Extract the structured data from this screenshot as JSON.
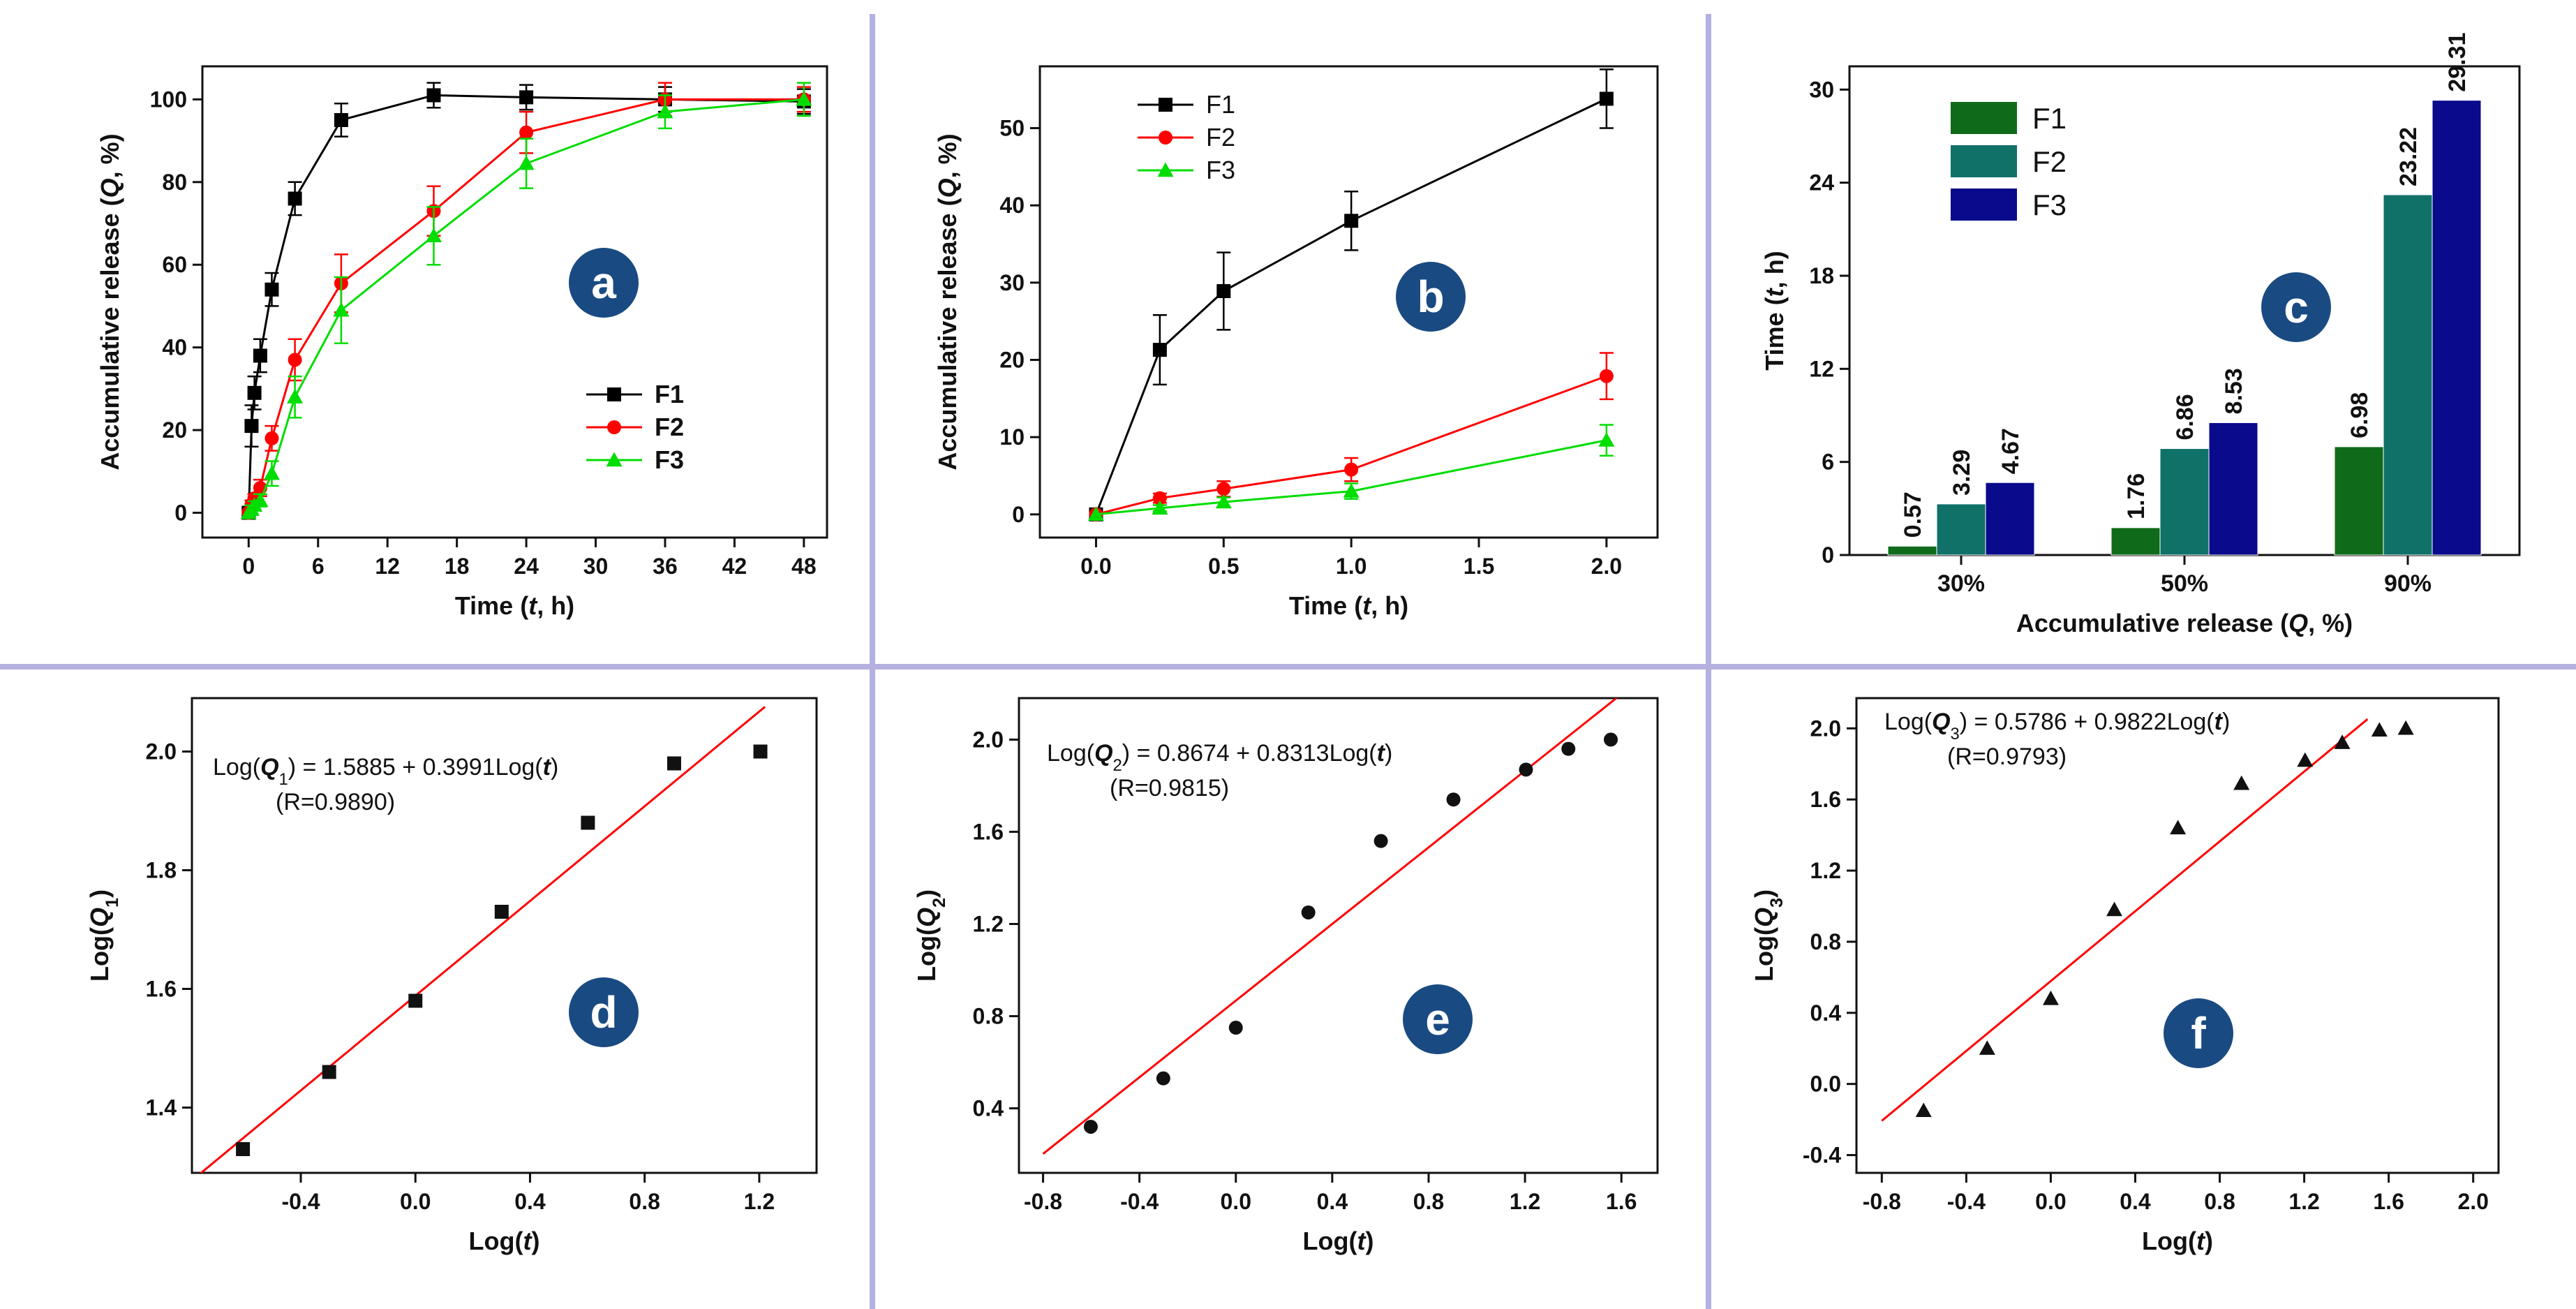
{
  "colors": {
    "divider": "#b4b0e0",
    "badge": "#1a4a82",
    "badge_text": "#ffffff",
    "F1": "#000000",
    "F2": "#ff0000",
    "F3": "#00dd00",
    "bar_F1": "#0f6b1a",
    "bar_F2": "#107169",
    "bar_F3": "#0a0a8c",
    "fit_line": "#ff0000"
  },
  "chart_data": [
    {
      "id": "a",
      "type": "line",
      "badge": "a",
      "xlabel_parts": [
        "Time (",
        "t",
        ", h)"
      ],
      "ylabel_parts": [
        "Accumulative release (",
        "Q",
        ", %)"
      ],
      "xlim": [
        -4,
        50
      ],
      "ylim": [
        -6,
        108
      ],
      "xticks": [
        0,
        6,
        12,
        18,
        24,
        30,
        36,
        42,
        48
      ],
      "xtick_labels": [
        "0",
        "6",
        "12",
        "18",
        "24",
        "30",
        "36",
        "42",
        "48"
      ],
      "yticks": [
        0,
        20,
        40,
        60,
        80,
        100
      ],
      "ytick_labels": [
        "0",
        "20",
        "40",
        "60",
        "80",
        "100"
      ],
      "legend_position": "center-right",
      "series": [
        {
          "name": "F1",
          "marker": "square",
          "x": [
            0,
            0.25,
            0.5,
            1,
            2,
            4,
            8,
            16,
            24,
            36,
            48
          ],
          "y": [
            0,
            21,
            29,
            38,
            54,
            76,
            95,
            101,
            100.5,
            100,
            99.5
          ],
          "err": [
            0,
            5,
            4,
            4,
            4,
            4,
            4,
            3,
            3,
            3,
            3
          ]
        },
        {
          "name": "F2",
          "marker": "circle",
          "x": [
            0,
            0.25,
            0.5,
            1,
            2,
            4,
            8,
            16,
            24,
            36,
            48
          ],
          "y": [
            0,
            2,
            3.5,
            6,
            18,
            37,
            55.5,
            73,
            92,
            100,
            100
          ],
          "err": [
            0,
            1,
            1,
            2,
            3,
            5,
            7,
            6,
            5,
            4,
            3
          ]
        },
        {
          "name": "F3",
          "marker": "triangle",
          "x": [
            0,
            0.25,
            0.5,
            1,
            2,
            4,
            8,
            16,
            24,
            36,
            48
          ],
          "y": [
            0,
            0.8,
            1.8,
            3,
            9.5,
            28,
            49,
            67,
            84.5,
            97,
            100
          ],
          "err": [
            0,
            1,
            1,
            1.5,
            3,
            5,
            8,
            7,
            6,
            4,
            4
          ]
        }
      ]
    },
    {
      "id": "b",
      "type": "line",
      "badge": "b",
      "xlabel_parts": [
        "Time (",
        "t",
        ", h)"
      ],
      "ylabel_parts": [
        "Accumulative release (",
        "Q",
        ", %)"
      ],
      "xlim": [
        -0.22,
        2.2
      ],
      "ylim": [
        -3,
        58
      ],
      "xticks": [
        0,
        0.5,
        1,
        1.5,
        2
      ],
      "xtick_labels": [
        "0.0",
        "0.5",
        "1.0",
        "1.5",
        "2.0"
      ],
      "yticks": [
        0,
        10,
        20,
        30,
        40,
        50
      ],
      "ytick_labels": [
        "0",
        "10",
        "20",
        "30",
        "40",
        "50"
      ],
      "legend_position": "top-left",
      "series": [
        {
          "name": "F1",
          "marker": "square",
          "x": [
            0,
            0.25,
            0.5,
            1,
            2
          ],
          "y": [
            0,
            21.3,
            28.9,
            38,
            53.8
          ],
          "err": [
            0,
            4.5,
            5,
            3.8,
            3.8
          ]
        },
        {
          "name": "F2",
          "marker": "circle",
          "x": [
            0,
            0.25,
            0.5,
            1,
            2
          ],
          "y": [
            0,
            2.1,
            3.3,
            5.8,
            17.9
          ],
          "err": [
            0,
            0.6,
            1,
            1.5,
            3
          ]
        },
        {
          "name": "F3",
          "marker": "triangle",
          "x": [
            0,
            0.25,
            0.5,
            1,
            2
          ],
          "y": [
            0,
            0.8,
            1.6,
            3,
            9.6
          ],
          "err": [
            0,
            0.4,
            0.6,
            1,
            2
          ]
        }
      ]
    },
    {
      "id": "c",
      "type": "bar",
      "badge": "c",
      "categories": [
        "30%",
        "50%",
        "90%"
      ],
      "xlabel_parts": [
        "Accumulative release (",
        "Q",
        ", %)"
      ],
      "ylabel_parts": [
        "Time (",
        "t",
        ", h)"
      ],
      "ylim": [
        0,
        31.5
      ],
      "yticks": [
        0,
        6,
        12,
        18,
        24,
        30
      ],
      "ytick_labels": [
        "0",
        "6",
        "12",
        "18",
        "24",
        "30"
      ],
      "legend_position": "top-left",
      "series": [
        {
          "name": "F1",
          "values": [
            0.57,
            1.76,
            6.98
          ],
          "labels": [
            "0.57",
            "1.76",
            "6.98"
          ]
        },
        {
          "name": "F2",
          "values": [
            3.29,
            6.86,
            23.22
          ],
          "labels": [
            "3.29",
            "6.86",
            "23.22"
          ]
        },
        {
          "name": "F3",
          "values": [
            4.67,
            8.53,
            29.31
          ],
          "labels": [
            "4.67",
            "8.53",
            "29.31"
          ]
        }
      ]
    },
    {
      "id": "d",
      "type": "scatter",
      "badge": "d",
      "marker": "square",
      "xlabel_parts": [
        "Log(",
        "t",
        ")"
      ],
      "ylabel_parts": [
        "Log(",
        "Q",
        "1",
        ")"
      ],
      "xlim": [
        -0.78,
        1.4
      ],
      "ylim": [
        1.29,
        2.09
      ],
      "xticks": [
        -0.4,
        0,
        0.4,
        0.8,
        1.2
      ],
      "xtick_labels": [
        "-0.4",
        "0.0",
        "0.4",
        "0.8",
        "1.2"
      ],
      "yticks": [
        1.4,
        1.6,
        1.8,
        2.0
      ],
      "ytick_labels": [
        "1.4",
        "1.6",
        "1.8",
        "2.0"
      ],
      "equation_parts": [
        "Log(",
        "Q",
        "1",
        ") = 1.5885 + 0.3991Log(",
        "t",
        ")"
      ],
      "r_label": "(R=0.9890)",
      "fit": {
        "intercept": 1.5885,
        "slope": 0.3991,
        "x_range": [
          -0.78,
          1.22
        ]
      },
      "x": [
        -0.602,
        -0.301,
        0,
        0.301,
        0.602,
        0.903,
        1.204
      ],
      "y": [
        1.33,
        1.46,
        1.58,
        1.73,
        1.88,
        1.98,
        2.0
      ]
    },
    {
      "id": "e",
      "type": "scatter",
      "badge": "e",
      "marker": "circle",
      "xlabel_parts": [
        "Log(",
        "t",
        ")"
      ],
      "ylabel_parts": [
        "Log(",
        "Q",
        "2",
        ")"
      ],
      "xlim": [
        -0.9,
        1.75
      ],
      "ylim": [
        0.12,
        2.18
      ],
      "xticks": [
        -0.8,
        -0.4,
        0,
        0.4,
        0.8,
        1.2,
        1.6
      ],
      "xtick_labels": [
        "-0.8",
        "-0.4",
        "0.0",
        "0.4",
        "0.8",
        "1.2",
        "1.6"
      ],
      "yticks": [
        0.4,
        0.8,
        1.2,
        1.6,
        2.0
      ],
      "ytick_labels": [
        "0.4",
        "0.8",
        "1.2",
        "1.6",
        "2.0"
      ],
      "equation_parts": [
        "Log(",
        "Q",
        "2",
        ") = 0.8674 + 0.8313Log(",
        "t",
        ")"
      ],
      "r_label": "(R=0.9815)",
      "fit": {
        "intercept": 0.8674,
        "slope": 0.8313,
        "x_range": [
          -0.8,
          1.6
        ]
      },
      "x": [
        -0.602,
        -0.301,
        0,
        0.301,
        0.602,
        0.903,
        1.204,
        1.38,
        1.556
      ],
      "y": [
        0.32,
        0.53,
        0.75,
        1.25,
        1.56,
        1.74,
        1.87,
        1.96,
        2.0
      ]
    },
    {
      "id": "f",
      "type": "scatter",
      "badge": "f",
      "marker": "triangle",
      "xlabel_parts": [
        "Log(",
        "t",
        ")"
      ],
      "ylabel_parts": [
        "Log(",
        "Q",
        "3",
        ")"
      ],
      "xlim": [
        -0.92,
        2.12
      ],
      "ylim": [
        -0.5,
        2.17
      ],
      "xticks": [
        -0.8,
        -0.4,
        0,
        0.4,
        0.8,
        1.2,
        1.6,
        2.0
      ],
      "xtick_labels": [
        "-0.8",
        "-0.4",
        "0.0",
        "0.4",
        "0.8",
        "1.2",
        "1.6",
        "2.0"
      ],
      "yticks": [
        -0.4,
        0,
        0.4,
        0.8,
        1.2,
        1.6,
        2.0
      ],
      "ytick_labels": [
        "-0.4",
        "0.0",
        "0.4",
        "0.8",
        "1.2",
        "1.6",
        "2.0"
      ],
      "equation_parts": [
        "Log(",
        "Q",
        "3",
        ") = 0.5786 + 0.9822Log(",
        "t",
        ")"
      ],
      "r_label": "(R=0.9793)",
      "fit": {
        "intercept": 0.5786,
        "slope": 0.9822,
        "x_range": [
          -0.8,
          1.5
        ]
      },
      "x": [
        -0.602,
        -0.301,
        0,
        0.301,
        0.602,
        0.903,
        1.204,
        1.38,
        1.556,
        1.681
      ],
      "y": [
        -0.15,
        0.2,
        0.48,
        0.98,
        1.44,
        1.69,
        1.82,
        1.92,
        1.99,
        2.0
      ]
    }
  ]
}
